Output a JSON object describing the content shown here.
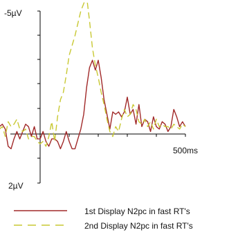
{
  "chart_data": {
    "type": "line",
    "title": "",
    "xlabel": "",
    "ylabel": "",
    "y_top_label": "-5µV",
    "y_bottom_label": "2µV",
    "x_tick_label": "500ms",
    "x_unit": "ms",
    "y_unit": "µV",
    "y_axis_inverted": true,
    "xlim": [
      -200,
      500
    ],
    "ylim": [
      -5,
      2
    ],
    "grid": false,
    "legend_placement": "bottom",
    "series": [
      {
        "name": "1st Display N2pc in fast RT's",
        "color": "#a02828",
        "style": "solid",
        "x": [
          -200,
          -190,
          -180,
          -170,
          -160,
          -150,
          -140,
          -130,
          -120,
          -110,
          -100,
          -90,
          -80,
          -70,
          -60,
          -50,
          -40,
          -30,
          -20,
          -10,
          0,
          10,
          20,
          30,
          40,
          50,
          60,
          70,
          80,
          90,
          100,
          110,
          120,
          130,
          140,
          150,
          160,
          170,
          180,
          190,
          200,
          210,
          220,
          230,
          240,
          250,
          260,
          270,
          280,
          290,
          300,
          310,
          320,
          330,
          340,
          350,
          360,
          370,
          380,
          390,
          400,
          410,
          420,
          430,
          440,
          450,
          460,
          470,
          480,
          490,
          500
        ],
        "y": [
          0.1,
          -0.3,
          -0.5,
          -0.4,
          0.0,
          0.2,
          -0.3,
          -0.4,
          -0.2,
          0.5,
          0.6,
          0.2,
          -0.1,
          0.2,
          -0.1,
          -0.4,
          -0.3,
          0.1,
          -0.3,
          0.2,
          0.2,
          -0.1,
          0.3,
          0.5,
          0.2,
          0.2,
          0.3,
          0.6,
          0.3,
          -0.1,
          0.3,
          0.6,
          0.6,
          0.2,
          -0.2,
          -0.8,
          -1.9,
          -2.7,
          -3.0,
          -2.6,
          -3.0,
          -2.3,
          -1.4,
          -0.8,
          -0.2,
          -0.9,
          -0.8,
          -0.9,
          -0.7,
          -0.9,
          -1.5,
          -0.8,
          -1.0,
          -0.4,
          -1.2,
          -0.3,
          -0.6,
          -0.5,
          -0.1,
          -0.7,
          -0.3,
          -0.2,
          -0.5,
          -0.4,
          -0.1,
          -0.3,
          -1.0,
          -0.7,
          -0.3,
          -0.5,
          -0.3
        ]
      },
      {
        "name": "2nd Display N2pc in fast RT's",
        "color": "#c8c832",
        "style": "dashed",
        "x": [
          -200,
          -190,
          -180,
          -170,
          -160,
          -150,
          -140,
          -130,
          -120,
          -110,
          -100,
          -90,
          -80,
          -70,
          -60,
          -50,
          -40,
          -30,
          -20,
          -10,
          0,
          10,
          20,
          30,
          40,
          50,
          60,
          70,
          80,
          90,
          100,
          110,
          120,
          130,
          140,
          150,
          160,
          170,
          180,
          190,
          200,
          210,
          220,
          230,
          240,
          250,
          260,
          270,
          280,
          290,
          300,
          310,
          320,
          330,
          340,
          350,
          360,
          370,
          380,
          390,
          400,
          410,
          420,
          430,
          440,
          450,
          460,
          470,
          480,
          490,
          500
        ],
        "y": [
          0.3,
          0.1,
          0.0,
          -0.3,
          -0.4,
          -0.2,
          -0.2,
          -0.3,
          0.1,
          -0.5,
          -0.3,
          -0.4,
          -0.6,
          -0.2,
          -0.1,
          -0.2,
          0.2,
          0.1,
          0.1,
          0.3,
          0.4,
          0.3,
          0.5,
          0.1,
          -0.5,
          0.3,
          -0.7,
          -1.4,
          -1.7,
          -2.4,
          -3.2,
          -3.6,
          -4.0,
          -4.5,
          -5.0,
          -5.3,
          -5.6,
          -4.6,
          -3.5,
          -2.8,
          -2.3,
          -1.7,
          -1.2,
          -0.6,
          -0.1,
          0.1,
          -0.3,
          -0.1,
          -0.6,
          -1.0,
          -0.7,
          -0.8,
          -1.2,
          -1.0,
          -0.5,
          -0.4,
          -0.6,
          -0.3,
          -0.5,
          -0.2,
          -0.6,
          -0.3,
          -0.4,
          -0.3,
          -0.3,
          -0.2,
          -0.4,
          -0.3,
          -0.2,
          -0.4,
          -0.3
        ]
      }
    ]
  }
}
